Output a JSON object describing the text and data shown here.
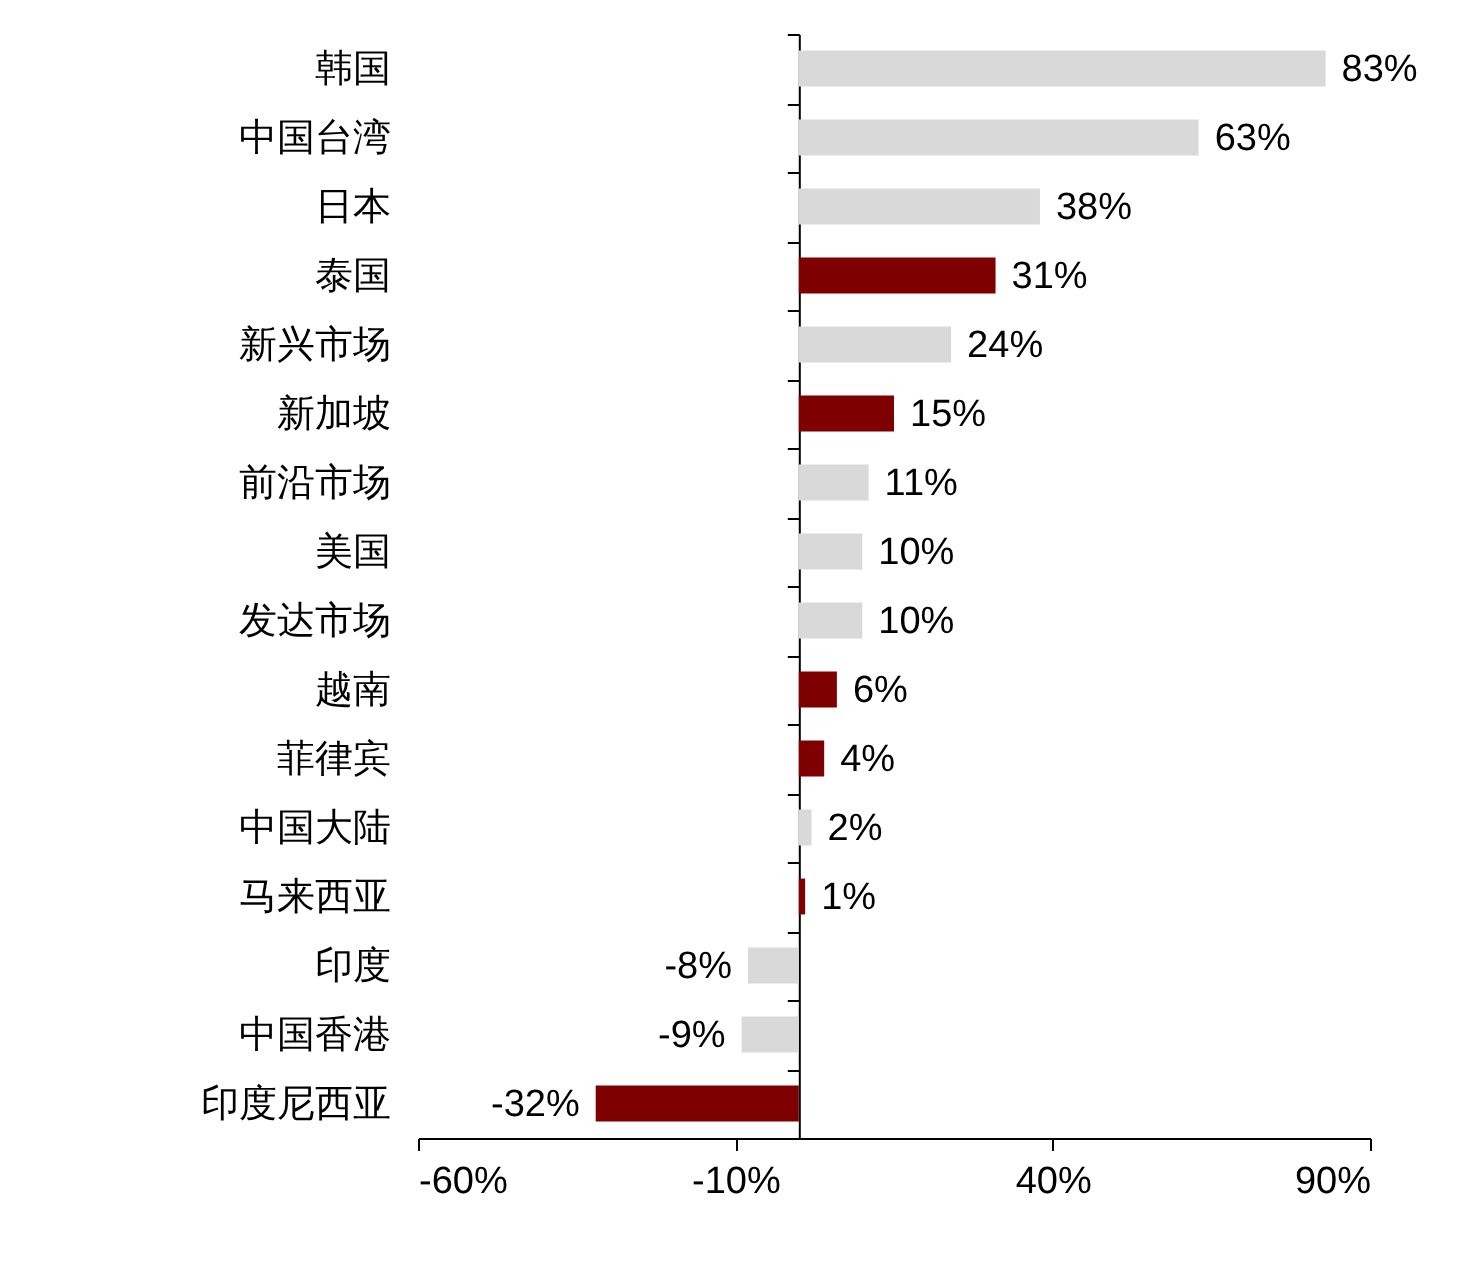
{
  "chart_data": {
    "type": "bar",
    "orientation": "horizontal",
    "categories": [
      "韩国",
      "中国台湾",
      "日本",
      "泰国",
      "新兴市场",
      "新加坡",
      "前沿市场",
      "美国",
      "发达市场",
      "越南",
      "菲律宾",
      "中国大陆",
      "马来西亚",
      "印度",
      "中国香港",
      "印度尼西亚"
    ],
    "values": [
      83,
      63,
      38,
      31,
      24,
      15,
      11,
      10,
      10,
      6,
      4,
      2,
      1,
      -8,
      -9,
      -32
    ],
    "colors": [
      "#d9d9d9",
      "#d9d9d9",
      "#d9d9d9",
      "#7f0000",
      "#d9d9d9",
      "#7f0000",
      "#d9d9d9",
      "#d9d9d9",
      "#d9d9d9",
      "#7f0000",
      "#7f0000",
      "#d9d9d9",
      "#7f0000",
      "#d9d9d9",
      "#d9d9d9",
      "#7f0000"
    ],
    "value_labels": [
      "83%",
      "63%",
      "38%",
      "31%",
      "24%",
      "15%",
      "11%",
      "10%",
      "10%",
      "6%",
      "4%",
      "2%",
      "1%",
      "-8%",
      "-9%",
      "-32%"
    ],
    "xlim": [
      -60,
      90
    ],
    "xticks": [
      {
        "value": -60,
        "label": "-60%"
      },
      {
        "value": -10,
        "label": "-10%"
      },
      {
        "value": 40,
        "label": "40%"
      },
      {
        "value": 90,
        "label": "90%"
      }
    ],
    "grid": false
  }
}
